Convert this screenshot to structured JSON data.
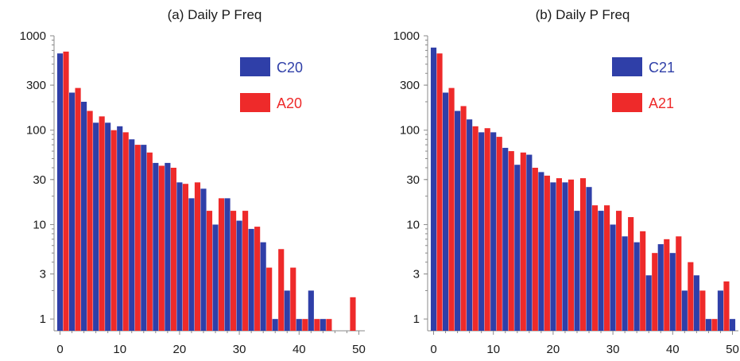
{
  "chart_data": [
    {
      "type": "bar",
      "title": "(a) Daily P Freq",
      "xlabel": "",
      "ylabel": "",
      "yscale": "log",
      "ylim": [
        0.75,
        1000
      ],
      "xlim": [
        -1,
        51
      ],
      "xticks": [
        "0",
        "10",
        "20",
        "30",
        "40",
        "50"
      ],
      "yticks": [
        "1",
        "3",
        "10",
        "30",
        "100",
        "300",
        "1000"
      ],
      "legend_position": "top-right",
      "series": [
        {
          "name": "C20",
          "color": "#2f3fa8",
          "x": [
            0,
            2,
            4,
            6,
            8,
            10,
            12,
            14,
            16,
            18,
            20,
            22,
            24,
            26,
            28,
            30,
            32,
            34,
            36,
            38,
            40,
            42,
            44
          ],
          "values": [
            650,
            250,
            200,
            120,
            120,
            110,
            80,
            70,
            45,
            45,
            28,
            19,
            24,
            10,
            19,
            11,
            9,
            6.5,
            1,
            2,
            1,
            2,
            1
          ]
        },
        {
          "name": "A20",
          "color": "#ee2a2a",
          "x": [
            1,
            3,
            5,
            7,
            9,
            11,
            13,
            15,
            17,
            19,
            21,
            23,
            25,
            27,
            29,
            31,
            33,
            35,
            37,
            39,
            41,
            43,
            45,
            49
          ],
          "values": [
            680,
            280,
            160,
            140,
            100,
            95,
            70,
            58,
            42,
            40,
            27,
            28,
            14,
            19,
            14,
            14,
            9.5,
            3.5,
            5.5,
            3.5,
            1,
            1,
            1,
            1.7
          ]
        }
      ]
    },
    {
      "type": "bar",
      "title": "(b) Daily P Freq",
      "xlabel": "",
      "ylabel": "",
      "yscale": "log",
      "ylim": [
        0.75,
        1000
      ],
      "xlim": [
        -1,
        51
      ],
      "xticks": [
        "0",
        "10",
        "20",
        "30",
        "40",
        "50"
      ],
      "yticks": [
        "1",
        "3",
        "10",
        "30",
        "100",
        "300",
        "1000"
      ],
      "legend_position": "top-right",
      "series": [
        {
          "name": "C21",
          "color": "#2f3fa8",
          "x": [
            0,
            2,
            4,
            6,
            8,
            10,
            12,
            14,
            16,
            18,
            20,
            22,
            24,
            26,
            28,
            30,
            32,
            34,
            36,
            38,
            40,
            42,
            44,
            46,
            48,
            50
          ],
          "values": [
            750,
            250,
            160,
            130,
            95,
            95,
            65,
            43,
            55,
            36,
            28,
            28,
            14,
            25,
            14,
            10,
            7.5,
            6.5,
            2.9,
            6.2,
            5,
            2,
            2.9,
            1,
            2,
            1
          ]
        },
        {
          "name": "A21",
          "color": "#ee2a2a",
          "x": [
            1,
            3,
            5,
            7,
            9,
            11,
            13,
            15,
            17,
            19,
            21,
            23,
            25,
            27,
            29,
            31,
            33,
            35,
            37,
            39,
            41,
            43,
            45,
            47,
            49
          ],
          "values": [
            650,
            280,
            180,
            110,
            105,
            85,
            60,
            58,
            40,
            33,
            31,
            30,
            31,
            16,
            16,
            14,
            12,
            8.5,
            5,
            7,
            7.5,
            4,
            2,
            1,
            2.5
          ]
        }
      ]
    }
  ]
}
